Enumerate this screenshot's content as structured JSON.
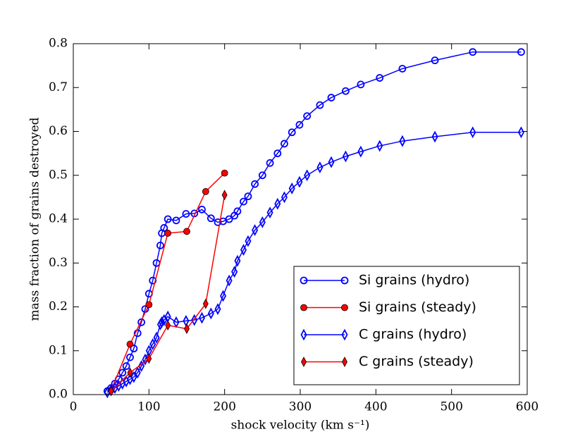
{
  "chart_data": {
    "type": "line",
    "xlabel": "shock velocity (km s⁻¹)",
    "ylabel": "mass fraction of grains destroyed",
    "xlim": [
      0,
      600
    ],
    "xticks": [
      0,
      100,
      200,
      300,
      400,
      500,
      600
    ],
    "ylim": [
      0,
      0.8
    ],
    "yticks": [
      {
        "value": 0,
        "label": "0.0"
      },
      0.1,
      0.2,
      0.3,
      0.4,
      0.5,
      0.6,
      0.7,
      0.8
    ],
    "legend": "lower right",
    "series": [
      {
        "name": "Si grains (hydro)",
        "color": "#0000ff",
        "marker": "circle-open",
        "x": [
          45,
          50,
          55,
          60,
          65,
          70,
          75,
          80,
          85,
          90,
          95,
          100,
          105,
          110,
          115,
          117,
          120,
          125,
          136,
          149,
          160,
          170,
          182,
          191,
          198,
          206,
          213,
          217,
          225,
          231,
          240,
          250,
          260,
          270,
          279,
          289,
          299,
          309,
          326,
          341,
          360,
          380,
          405,
          435,
          478,
          528,
          592
        ],
        "values": [
          0.008,
          0.015,
          0.025,
          0.035,
          0.05,
          0.065,
          0.085,
          0.105,
          0.14,
          0.165,
          0.195,
          0.23,
          0.26,
          0.3,
          0.34,
          0.368,
          0.38,
          0.4,
          0.397,
          0.412,
          0.413,
          0.422,
          0.402,
          0.393,
          0.395,
          0.4,
          0.408,
          0.418,
          0.44,
          0.452,
          0.48,
          0.5,
          0.528,
          0.55,
          0.572,
          0.598,
          0.615,
          0.635,
          0.66,
          0.677,
          0.692,
          0.707,
          0.722,
          0.743,
          0.762,
          0.781,
          0.781
        ]
      },
      {
        "name": "Si grains (steady)",
        "color": "#ff0000",
        "marker": "circle-filled",
        "x": [
          50,
          75,
          100,
          125,
          150,
          175,
          200
        ],
        "values": [
          0.01,
          0.115,
          0.205,
          0.368,
          0.372,
          0.463,
          0.505
        ]
      },
      {
        "name": "C grains (hydro)",
        "color": "#0000ff",
        "marker": "diamond-open",
        "x": [
          45,
          50,
          55,
          60,
          65,
          70,
          75,
          80,
          85,
          90,
          95,
          100,
          105,
          110,
          115,
          117,
          120,
          125,
          136,
          149,
          160,
          170,
          182,
          191,
          198,
          206,
          213,
          217,
          225,
          231,
          240,
          250,
          260,
          270,
          279,
          289,
          299,
          309,
          326,
          341,
          360,
          380,
          405,
          435,
          478,
          528,
          592
        ],
        "values": [
          0.005,
          0.01,
          0.015,
          0.02,
          0.025,
          0.03,
          0.035,
          0.04,
          0.05,
          0.065,
          0.08,
          0.1,
          0.115,
          0.13,
          0.16,
          0.165,
          0.17,
          0.178,
          0.165,
          0.168,
          0.17,
          0.175,
          0.185,
          0.195,
          0.225,
          0.26,
          0.28,
          0.305,
          0.33,
          0.35,
          0.375,
          0.393,
          0.415,
          0.435,
          0.45,
          0.47,
          0.485,
          0.5,
          0.518,
          0.53,
          0.543,
          0.554,
          0.567,
          0.578,
          0.588,
          0.598,
          0.598
        ]
      },
      {
        "name": "C grains (steady)",
        "color": "#ff0000",
        "marker": "diamond-filled",
        "x": [
          50,
          75,
          100,
          125,
          150,
          175,
          200
        ],
        "values": [
          0.008,
          0.05,
          0.082,
          0.158,
          0.15,
          0.207,
          0.455
        ]
      }
    ]
  }
}
